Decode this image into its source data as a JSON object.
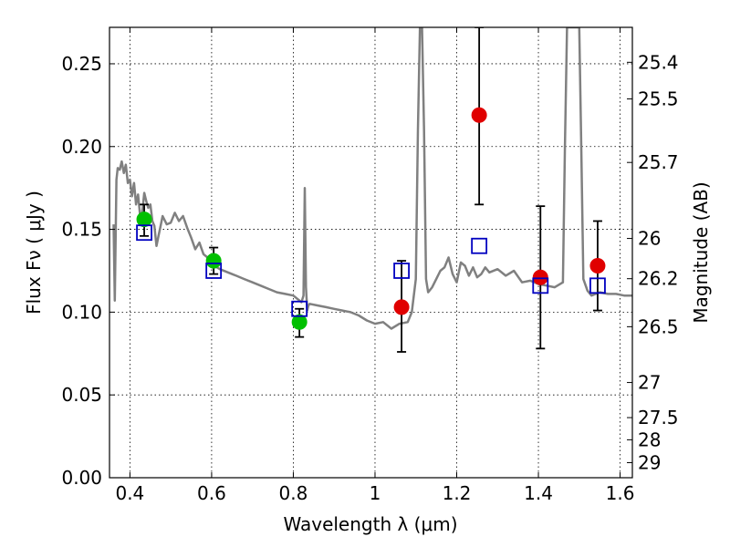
{
  "chart_data": {
    "type": "scatter",
    "title": "",
    "xlabel": "Wavelength  λ (μm)",
    "ylabel": "Flux  Fν  ( μJy )",
    "ylabel_right": "Magnitude (AB)",
    "xlim": [
      0.35,
      1.63
    ],
    "ylim": [
      0.0,
      0.272
    ],
    "grid": true,
    "x_ticks": [
      0.4,
      0.6,
      0.8,
      1.0,
      1.2,
      1.4,
      1.6
    ],
    "x_tick_labels": [
      "0.4",
      "0.6",
      "0.8",
      "1",
      "1.2",
      "1.4",
      "1.6"
    ],
    "y_ticks": [
      0.0,
      0.05,
      0.1,
      0.15,
      0.2,
      0.25
    ],
    "y_tick_labels": [
      "0.00",
      "0.05",
      "0.10",
      "0.15",
      "0.20",
      "0.25"
    ],
    "right_axis_ticks": [
      {
        "label": "25.4",
        "flux": 0.2509
      },
      {
        "label": "25.5",
        "flux": 0.2288
      },
      {
        "label": "25.7",
        "flux": 0.1904
      },
      {
        "label": "26",
        "flux": 0.1445
      },
      {
        "label": "26.2",
        "flux": 0.1202
      },
      {
        "label": "26.5",
        "flux": 0.0912
      },
      {
        "label": "27",
        "flux": 0.0575
      },
      {
        "label": "27.5",
        "flux": 0.0363
      },
      {
        "label": "28",
        "flux": 0.0229
      },
      {
        "label": "29",
        "flux": 0.0091
      }
    ],
    "series": [
      {
        "type": "line",
        "color": "#808080",
        "x": [
          0.36,
          0.363,
          0.367,
          0.37,
          0.375,
          0.38,
          0.385,
          0.39,
          0.395,
          0.4,
          0.405,
          0.41,
          0.415,
          0.42,
          0.425,
          0.43,
          0.435,
          0.44,
          0.445,
          0.45,
          0.455,
          0.46,
          0.465,
          0.47,
          0.475,
          0.48,
          0.49,
          0.5,
          0.51,
          0.52,
          0.53,
          0.54,
          0.55,
          0.56,
          0.57,
          0.58,
          0.59,
          0.6,
          0.62,
          0.64,
          0.66,
          0.68,
          0.7,
          0.72,
          0.74,
          0.76,
          0.78,
          0.8,
          0.82,
          0.825,
          0.828,
          0.831,
          0.834,
          0.837,
          0.84,
          0.86,
          0.88,
          0.9,
          0.92,
          0.94,
          0.96,
          0.98,
          1.0,
          1.02,
          1.04,
          1.06,
          1.08,
          1.09,
          1.1,
          1.105,
          1.11,
          1.115,
          1.12,
          1.125,
          1.13,
          1.14,
          1.15,
          1.16,
          1.17,
          1.18,
          1.19,
          1.2,
          1.21,
          1.22,
          1.23,
          1.24,
          1.25,
          1.26,
          1.27,
          1.28,
          1.3,
          1.32,
          1.34,
          1.36,
          1.38,
          1.4,
          1.42,
          1.44,
          1.46,
          1.465,
          1.47,
          1.48,
          1.49,
          1.5,
          1.505,
          1.51,
          1.52,
          1.53,
          1.55,
          1.57,
          1.59,
          1.61,
          1.63
        ],
        "y": [
          0.153,
          0.107,
          0.18,
          0.187,
          0.186,
          0.191,
          0.184,
          0.189,
          0.178,
          0.18,
          0.17,
          0.178,
          0.165,
          0.171,
          0.158,
          0.16,
          0.172,
          0.167,
          0.163,
          0.165,
          0.155,
          0.152,
          0.14,
          0.146,
          0.152,
          0.158,
          0.153,
          0.154,
          0.16,
          0.155,
          0.158,
          0.151,
          0.145,
          0.138,
          0.142,
          0.135,
          0.133,
          0.129,
          0.126,
          0.124,
          0.122,
          0.12,
          0.118,
          0.116,
          0.114,
          0.112,
          0.111,
          0.11,
          0.106,
          0.11,
          0.175,
          0.115,
          0.101,
          0.104,
          0.105,
          0.104,
          0.103,
          0.102,
          0.101,
          0.1,
          0.098,
          0.095,
          0.093,
          0.094,
          0.09,
          0.093,
          0.094,
          0.1,
          0.12,
          0.21,
          0.272,
          0.272,
          0.21,
          0.12,
          0.112,
          0.115,
          0.12,
          0.125,
          0.127,
          0.133,
          0.123,
          0.118,
          0.13,
          0.128,
          0.122,
          0.127,
          0.121,
          0.123,
          0.127,
          0.124,
          0.126,
          0.122,
          0.125,
          0.118,
          0.119,
          0.117,
          0.116,
          0.115,
          0.118,
          0.2,
          0.272,
          0.272,
          0.272,
          0.272,
          0.2,
          0.12,
          0.113,
          0.11,
          0.112,
          0.111,
          0.111,
          0.11,
          0.11
        ]
      },
      {
        "type": "points",
        "marker": "circle",
        "color": "#00c000",
        "x": [
          0.435,
          0.605,
          0.815
        ],
        "y": [
          0.156,
          0.131,
          0.094
        ],
        "err_low": [
          0.146,
          0.123,
          0.085
        ],
        "err_high": [
          0.165,
          0.139,
          0.102
        ]
      },
      {
        "type": "points",
        "marker": "circle",
        "color": "#e00000",
        "x": [
          1.065,
          1.255,
          1.405,
          1.545
        ],
        "y": [
          0.103,
          0.219,
          0.121,
          0.128
        ],
        "err_low": [
          0.076,
          0.165,
          0.078,
          0.101
        ],
        "err_high": [
          0.131,
          0.272,
          0.164,
          0.155
        ]
      },
      {
        "type": "points",
        "marker": "open-square",
        "color": "#0000c0",
        "x": [
          0.435,
          0.605,
          0.815,
          1.065,
          1.255,
          1.405,
          1.545
        ],
        "y": [
          0.148,
          0.125,
          0.102,
          0.125,
          0.14,
          0.116,
          0.116
        ]
      }
    ]
  }
}
